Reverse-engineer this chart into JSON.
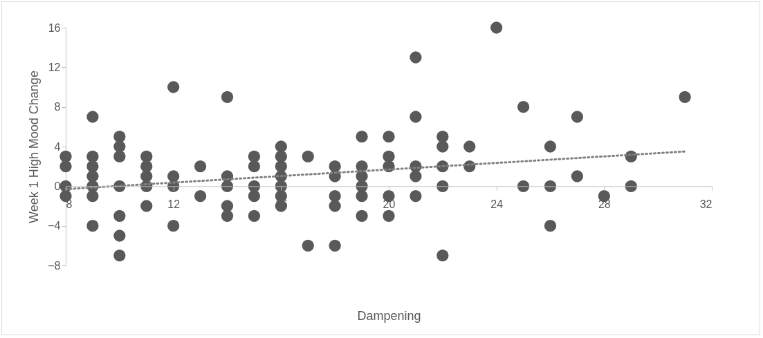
{
  "chart_data": {
    "type": "scatter",
    "xlabel": "Dampening",
    "ylabel": "Week 1 High Mood Change",
    "xlim": [
      8,
      32
    ],
    "xticks": [
      8,
      12,
      16,
      20,
      24,
      28,
      32
    ],
    "ylim": [
      -8,
      16
    ],
    "yticks": [
      -8,
      -4,
      0,
      4,
      8,
      12,
      16
    ],
    "grid": false,
    "marker": "circle",
    "series": [
      {
        "color": "#595959",
        "x": [
          8,
          8,
          8,
          8,
          9,
          9,
          9,
          9,
          9,
          9,
          9,
          10,
          10,
          10,
          10,
          10,
          10,
          10,
          11,
          11,
          11,
          11,
          11,
          12,
          12,
          12,
          12,
          13,
          13,
          14,
          14,
          14,
          14,
          14,
          15,
          15,
          15,
          15,
          15,
          16,
          16,
          16,
          16,
          16,
          16,
          16,
          17,
          17,
          18,
          18,
          18,
          18,
          18,
          19,
          19,
          19,
          19,
          19,
          19,
          20,
          20,
          20,
          20,
          20,
          21,
          21,
          21,
          21,
          21,
          22,
          22,
          22,
          22,
          22,
          23,
          23,
          24,
          25,
          25,
          26,
          26,
          26,
          27,
          27,
          28,
          29,
          29,
          31
        ],
        "values": [
          3,
          2,
          0,
          -1,
          7,
          3,
          2,
          1,
          0,
          -1,
          -4,
          5,
          4,
          3,
          0,
          -3,
          -5,
          -7,
          3,
          2,
          1,
          0,
          -2,
          10,
          1,
          0,
          -4,
          2,
          -1,
          9,
          1,
          0,
          -2,
          -3,
          3,
          2,
          0,
          -1,
          -3,
          4,
          3,
          2,
          1,
          0,
          -1,
          -2,
          3,
          -6,
          2,
          1,
          -1,
          -2,
          -6,
          5,
          2,
          1,
          0,
          -1,
          -3,
          5,
          3,
          2,
          -1,
          -3,
          13,
          7,
          2,
          1,
          -1,
          5,
          4,
          2,
          0,
          -7,
          4,
          2,
          16,
          8,
          0,
          4,
          0,
          -4,
          7,
          1,
          -1,
          3,
          0,
          9
        ]
      },
      {
        "type": "line",
        "color": "#808080",
        "line_style": "dotted",
        "marker": "none",
        "x": [
          8,
          31
        ],
        "values": [
          -0.3,
          3.5
        ]
      }
    ]
  }
}
